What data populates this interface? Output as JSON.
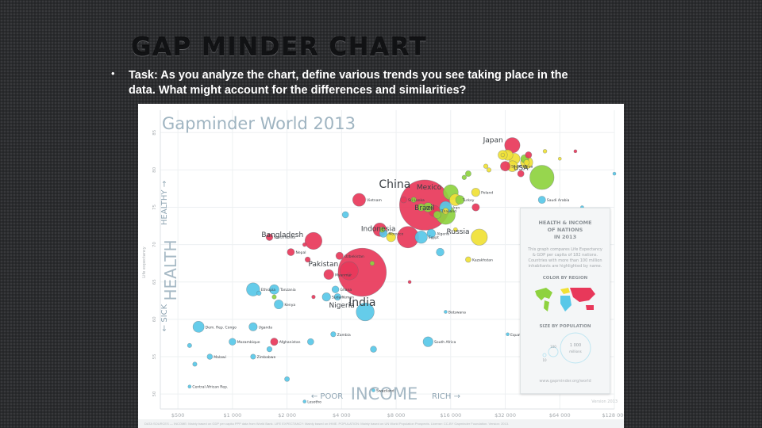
{
  "slide": {
    "title": "GAP MINDER CHART",
    "bullet": "•",
    "task": "Task: As you analyze the chart, define various trends you see taking place in the data. What might account for the differences and similarities?"
  },
  "chart_data": {
    "type": "scatter",
    "title": "Gapminder World 2013",
    "xlabel": "GDP per capita in international $",
    "ylabel": "Life expectancy",
    "x_scale": "log",
    "xlim": [
      400,
      128000
    ],
    "ylim": [
      48,
      88
    ],
    "x_ticks": [
      "$500",
      "$1 000",
      "$2 000",
      "$4 000",
      "$8 000",
      "$16 000",
      "$32 000",
      "$64 000",
      "$128 000"
    ],
    "y_ticks": [
      "50",
      "55",
      "60",
      "65",
      "70",
      "75",
      "80",
      "85"
    ],
    "axis_words": {
      "poor": "POOR",
      "income": "INCOME",
      "rich": "RICH",
      "sick": "SICK",
      "health": "HEALTH",
      "healthy": "HEALTHY"
    },
    "grid": true,
    "region_colors": {
      "asia_red": "#e8385a",
      "africa_blue": "#58c8e8",
      "americas_green": "#8ed23f",
      "europe_yellow": "#f0e135"
    },
    "points": [
      {
        "name": "China",
        "x": 11500,
        "y": 75.3,
        "region": "asia_red",
        "pop": 1360,
        "label": true
      },
      {
        "name": "India",
        "x": 5200,
        "y": 66.3,
        "region": "asia_red",
        "pop": 1250,
        "label": true
      },
      {
        "name": "USA",
        "x": 51000,
        "y": 79,
        "region": "americas_green",
        "pop": 316,
        "label": true
      },
      {
        "name": "Indonesia",
        "x": 9300,
        "y": 71,
        "region": "asia_red",
        "pop": 250,
        "label": true
      },
      {
        "name": "Brazil",
        "x": 15000,
        "y": 74,
        "region": "americas_green",
        "pop": 200,
        "label": true
      },
      {
        "name": "Pakistan",
        "x": 4400,
        "y": 66.5,
        "region": "asia_red",
        "pop": 182,
        "label": true
      },
      {
        "name": "Nigeria",
        "x": 5400,
        "y": 61,
        "region": "africa_blue",
        "pop": 174,
        "label": true
      },
      {
        "name": "Bangladesh",
        "x": 2800,
        "y": 70.5,
        "region": "asia_red",
        "pop": 157,
        "label": true
      },
      {
        "name": "Russia",
        "x": 23000,
        "y": 71,
        "region": "europe_yellow",
        "pop": 143,
        "label": true
      },
      {
        "name": "Japan",
        "x": 35000,
        "y": 83.3,
        "region": "asia_red",
        "pop": 127,
        "label": true
      },
      {
        "name": "Mexico",
        "x": 16000,
        "y": 77,
        "region": "americas_green",
        "pop": 122,
        "label": true
      },
      {
        "name": "Philippines",
        "x": 6500,
        "y": 72,
        "region": "asia_red",
        "pop": 98,
        "label": false
      },
      {
        "name": "Ethiopia",
        "x": 1300,
        "y": 64,
        "region": "africa_blue",
        "pop": 94,
        "label": true
      },
      {
        "name": "Vietnam",
        "x": 5000,
        "y": 76,
        "region": "asia_red",
        "pop": 90,
        "label": true
      },
      {
        "name": "Egypt",
        "x": 11000,
        "y": 71,
        "region": "africa_blue",
        "pop": 82,
        "label": true
      },
      {
        "name": "Germany",
        "x": 42000,
        "y": 81,
        "region": "europe_yellow",
        "pop": 81,
        "label": false
      },
      {
        "name": "Iran",
        "x": 15000,
        "y": 75,
        "region": "africa_blue",
        "pop": 77,
        "label": true
      },
      {
        "name": "Turkey",
        "x": 17000,
        "y": 76,
        "region": "europe_yellow",
        "pop": 75,
        "label": true
      },
      {
        "name": "Dem. Rep. Congo",
        "x": 650,
        "y": 59,
        "region": "africa_blue",
        "pop": 67,
        "label": true
      },
      {
        "name": "Thailand",
        "x": 13000,
        "y": 74.5,
        "region": "asia_red",
        "pop": 67,
        "label": true
      },
      {
        "name": "France",
        "x": 36000,
        "y": 81.5,
        "region": "europe_yellow",
        "pop": 64,
        "label": false
      },
      {
        "name": "United Kingdom",
        "x": 35000,
        "y": 80.5,
        "region": "europe_yellow",
        "pop": 63,
        "label": false
      },
      {
        "name": "Italy",
        "x": 33000,
        "y": 82,
        "region": "europe_yellow",
        "pop": 60,
        "label": false
      },
      {
        "name": "Myanmar",
        "x": 3400,
        "y": 66,
        "region": "asia_red",
        "pop": 53,
        "label": true
      },
      {
        "name": "South Africa",
        "x": 12000,
        "y": 57,
        "region": "africa_blue",
        "pop": 53,
        "label": true
      },
      {
        "name": "Tanzania",
        "x": 1700,
        "y": 64,
        "region": "africa_blue",
        "pop": 49,
        "label": true
      },
      {
        "name": "South Korea",
        "x": 32000,
        "y": 80.5,
        "region": "asia_red",
        "pop": 50,
        "label": true
      },
      {
        "name": "Colombia",
        "x": 12000,
        "y": 75,
        "region": "americas_green",
        "pop": 48,
        "label": false
      },
      {
        "name": "Spain",
        "x": 31000,
        "y": 82,
        "region": "europe_yellow",
        "pop": 47,
        "label": false
      },
      {
        "name": "Kenya",
        "x": 1800,
        "y": 62,
        "region": "africa_blue",
        "pop": 44,
        "label": true
      },
      {
        "name": "Ukraine",
        "x": 7500,
        "y": 71,
        "region": "europe_yellow",
        "pop": 45,
        "label": false
      },
      {
        "name": "Argentina",
        "x": 18000,
        "y": 76,
        "region": "americas_green",
        "pop": 41,
        "label": false
      },
      {
        "name": "Poland",
        "x": 22000,
        "y": 77,
        "region": "europe_yellow",
        "pop": 38,
        "label": true
      },
      {
        "name": "Canada",
        "x": 41000,
        "y": 81.5,
        "region": "americas_green",
        "pop": 35,
        "label": false
      },
      {
        "name": "Sudan",
        "x": 3300,
        "y": 63,
        "region": "africa_blue",
        "pop": 38,
        "label": true
      },
      {
        "name": "Uganda",
        "x": 1300,
        "y": 59,
        "region": "africa_blue",
        "pop": 37,
        "label": true
      },
      {
        "name": "Algeria",
        "x": 12500,
        "y": 71.5,
        "region": "africa_blue",
        "pop": 39,
        "label": true
      },
      {
        "name": "Iraq",
        "x": 14000,
        "y": 69,
        "region": "africa_blue",
        "pop": 33,
        "label": false
      },
      {
        "name": "Morocco",
        "x": 6800,
        "y": 71.5,
        "region": "africa_blue",
        "pop": 33,
        "label": true
      },
      {
        "name": "Afghanistan",
        "x": 1700,
        "y": 57,
        "region": "asia_red",
        "pop": 30,
        "label": true
      },
      {
        "name": "Venezuela",
        "x": 13500,
        "y": 74,
        "region": "americas_green",
        "pop": 30,
        "label": false
      },
      {
        "name": "Peru",
        "x": 11000,
        "y": 75,
        "region": "americas_green",
        "pop": 30,
        "label": true
      },
      {
        "name": "Malaysia",
        "x": 22000,
        "y": 75,
        "region": "asia_red",
        "pop": 30,
        "label": false
      },
      {
        "name": "Uzbekistan",
        "x": 3900,
        "y": 68.5,
        "region": "asia_red",
        "pop": 30,
        "label": true
      },
      {
        "name": "Saudi Arabia",
        "x": 51000,
        "y": 76,
        "region": "africa_blue",
        "pop": 29,
        "label": true
      },
      {
        "name": "Nepal",
        "x": 2100,
        "y": 69,
        "region": "asia_red",
        "pop": 28,
        "label": true
      },
      {
        "name": "Ghana",
        "x": 3700,
        "y": 64,
        "region": "africa_blue",
        "pop": 26,
        "label": true
      },
      {
        "name": "Mozambique",
        "x": 1000,
        "y": 57,
        "region": "africa_blue",
        "pop": 26,
        "label": true
      },
      {
        "name": "North Korea",
        "x": 1600,
        "y": 71,
        "region": "asia_red",
        "pop": 25,
        "label": true
      },
      {
        "name": "Yemen",
        "x": 3800,
        "y": 63,
        "region": "africa_blue",
        "pop": 24,
        "label": true
      },
      {
        "name": "Australia",
        "x": 43000,
        "y": 82,
        "region": "asia_red",
        "pop": 23,
        "label": false
      },
      {
        "name": "Taiwan",
        "x": 39000,
        "y": 79.5,
        "region": "asia_red",
        "pop": 23,
        "label": false
      },
      {
        "name": "Cameroon",
        "x": 2700,
        "y": 57,
        "region": "africa_blue",
        "pop": 22,
        "label": false
      },
      {
        "name": "Angola",
        "x": 6000,
        "y": 56,
        "region": "africa_blue",
        "pop": 21,
        "label": false
      },
      {
        "name": "Sri Lanka",
        "x": 8800,
        "y": 76,
        "region": "asia_red",
        "pop": 21,
        "label": true
      },
      {
        "name": "Syria",
        "x": 4200,
        "y": 74,
        "region": "africa_blue",
        "pop": 22,
        "label": false
      },
      {
        "name": "Romania",
        "x": 15000,
        "y": 74.5,
        "region": "europe_yellow",
        "pop": 20,
        "label": false
      },
      {
        "name": "Chile",
        "x": 20000,
        "y": 79.5,
        "region": "americas_green",
        "pop": 18,
        "label": false
      },
      {
        "name": "Kazakhstan",
        "x": 20000,
        "y": 68,
        "region": "europe_yellow",
        "pop": 17,
        "label": true
      },
      {
        "name": "Netherlands",
        "x": 42000,
        "y": 81,
        "region": "europe_yellow",
        "pop": 17,
        "label": false
      },
      {
        "name": "Guatemala",
        "x": 6700,
        "y": 72,
        "region": "americas_green",
        "pop": 15.5,
        "label": false
      },
      {
        "name": "Ecuador",
        "x": 10000,
        "y": 76,
        "region": "americas_green",
        "pop": 15.5,
        "label": false
      },
      {
        "name": "Cambodia",
        "x": 2600,
        "y": 68,
        "region": "asia_red",
        "pop": 15,
        "label": false
      },
      {
        "name": "Zambia",
        "x": 3600,
        "y": 58,
        "region": "africa_blue",
        "pop": 14.5,
        "label": true
      },
      {
        "name": "Zimbabwe",
        "x": 1300,
        "y": 55,
        "region": "africa_blue",
        "pop": 14,
        "label": true
      },
      {
        "name": "Malawi",
        "x": 750,
        "y": 55,
        "region": "africa_blue",
        "pop": 16,
        "label": true
      },
      {
        "name": "Mali",
        "x": 1600,
        "y": 56,
        "region": "africa_blue",
        "pop": 15,
        "label": false
      },
      {
        "name": "Chad",
        "x": 2000,
        "y": 52,
        "region": "africa_blue",
        "pop": 12.8,
        "label": false
      },
      {
        "name": "Somalia",
        "x": 620,
        "y": 54,
        "region": "africa_blue",
        "pop": 10,
        "label": false
      },
      {
        "name": "Burundi",
        "x": 580,
        "y": 56.5,
        "region": "africa_blue",
        "pop": 10,
        "label": false
      },
      {
        "name": "Rwanda",
        "x": 1400,
        "y": 63.5,
        "region": "africa_blue",
        "pop": 11,
        "label": false
      },
      {
        "name": "Cuba",
        "x": 19000,
        "y": 79,
        "region": "americas_green",
        "pop": 11,
        "label": false
      },
      {
        "name": "Greece",
        "x": 25000,
        "y": 80.5,
        "region": "europe_yellow",
        "pop": 11,
        "label": false
      },
      {
        "name": "Central African Rep.",
        "x": 580,
        "y": 51,
        "region": "africa_blue",
        "pop": 4.6,
        "label": true
      },
      {
        "name": "Lesotho",
        "x": 2500,
        "y": 49,
        "region": "africa_blue",
        "pop": 2,
        "label": true
      },
      {
        "name": "Swaziland",
        "x": 6000,
        "y": 50.5,
        "region": "africa_blue",
        "pop": 1.2,
        "label": true
      },
      {
        "name": "Botswana",
        "x": 15000,
        "y": 61,
        "region": "africa_blue",
        "pop": 2,
        "label": true
      },
      {
        "name": "Equatorial Guinea",
        "x": 33000,
        "y": 58,
        "region": "africa_blue",
        "pop": 0.8,
        "label": true
      },
      {
        "name": "Qatar",
        "x": 128000,
        "y": 79.5,
        "region": "africa_blue",
        "pop": 2,
        "label": false
      },
      {
        "name": "Singapore",
        "x": 78000,
        "y": 82.5,
        "region": "asia_red",
        "pop": 5.4,
        "label": false
      },
      {
        "name": "Norway",
        "x": 64000,
        "y": 81.5,
        "region": "europe_yellow",
        "pop": 5,
        "label": false
      },
      {
        "name": "Switzerland",
        "x": 53000,
        "y": 82.5,
        "region": "europe_yellow",
        "pop": 8,
        "label": false
      },
      {
        "name": "Kuwait",
        "x": 85000,
        "y": 75,
        "region": "africa_blue",
        "pop": 3.4,
        "label": false
      },
      {
        "name": "Papua New Guinea",
        "x": 2800,
        "y": 63,
        "region": "asia_red",
        "pop": 7.3,
        "label": false
      },
      {
        "name": "Haiti",
        "x": 1700,
        "y": 63,
        "region": "americas_green",
        "pop": 10,
        "label": false
      },
      {
        "name": "Bolivia",
        "x": 5900,
        "y": 67.5,
        "region": "americas_green",
        "pop": 10.7,
        "label": false
      },
      {
        "name": "Laos",
        "x": 4400,
        "y": 66,
        "region": "asia_red",
        "pop": 6.7,
        "label": false
      },
      {
        "name": "Mongolia",
        "x": 9500,
        "y": 65,
        "region": "asia_red",
        "pop": 2.8,
        "label": false
      },
      {
        "name": "Tajikistan",
        "x": 2500,
        "y": 70,
        "region": "asia_red",
        "pop": 8,
        "label": false
      },
      {
        "name": "Israel",
        "x": 31000,
        "y": 82,
        "region": "europe_yellow",
        "pop": 8,
        "label": false
      },
      {
        "name": "Portugal",
        "x": 26000,
        "y": 80,
        "region": "europe_yellow",
        "pop": 10.6,
        "label": false
      },
      {
        "name": "Belarus",
        "x": 17000,
        "y": 72,
        "region": "europe_yellow",
        "pop": 9.4,
        "label": false
      }
    ]
  },
  "legend_panel": {
    "title": "HEALTH & INCOME\nOF NATIONS\nIN 2013",
    "description": "This graph compares Life Expectancy & GDP per capita of 182 nations. Countries with more than 100 million inhabitants are highlighted by name.",
    "color_by_region_label": "COLOR BY REGION",
    "size_by_population_label": "SIZE BY POPULATION",
    "size_values": [
      "1 000",
      "100",
      "10"
    ],
    "size_units": "millions",
    "url": "www.gapminder.org/world"
  },
  "footer_text": "DATA SOURCES — INCOME: Mainly based on GDP per capita PPP data from World Bank. LIFE EXPECTANCY: Mainly based on IHME. POPULATION: Mainly based on UN World Population Prospects. License: CC-BY Gapminder Foundation. Version: 2013.",
  "version_stamp": "Version 2013"
}
